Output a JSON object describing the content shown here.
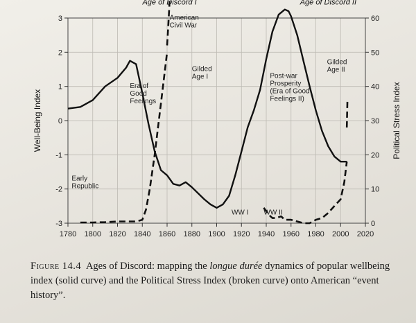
{
  "chart_data": {
    "type": "line",
    "xlim": [
      1780,
      2020
    ],
    "x_ticks": [
      "1780",
      "1800",
      "1820",
      "1840",
      "1860",
      "1880",
      "1900",
      "1920",
      "1940",
      "1960",
      "1980",
      "2000",
      "2020"
    ],
    "left_axis": {
      "label": "Well-Being Index",
      "ylim": [
        -3,
        3
      ],
      "ticks": [
        "-3",
        "-2",
        "-1",
        "0",
        "1",
        "2",
        "3"
      ]
    },
    "right_axis": {
      "label": "Political Stress Index",
      "ylim": [
        0,
        60
      ],
      "ticks": [
        "0",
        "10",
        "20",
        "30",
        "40",
        "50",
        "60"
      ]
    },
    "grid": true,
    "series": [
      {
        "style": "solid",
        "axis": "left",
        "x": [
          1780,
          1790,
          1800,
          1810,
          1820,
          1827,
          1830,
          1835,
          1840,
          1845,
          1850,
          1855,
          1860,
          1865,
          1870,
          1875,
          1880,
          1890,
          1895,
          1900,
          1905,
          1910,
          1915,
          1920,
          1925,
          1930,
          1935,
          1940,
          1945,
          1950,
          1955,
          1958,
          1960,
          1965,
          1970,
          1975,
          1980,
          1985,
          1990,
          1995,
          2000,
          2005
        ],
        "y": [
          0.35,
          0.4,
          0.6,
          1.0,
          1.25,
          1.55,
          1.75,
          1.65,
          0.8,
          -0.1,
          -0.9,
          -1.45,
          -1.6,
          -1.85,
          -1.9,
          -1.8,
          -1.95,
          -2.3,
          -2.45,
          -2.55,
          -2.45,
          -2.2,
          -1.6,
          -0.9,
          -0.2,
          0.3,
          0.9,
          1.8,
          2.6,
          3.1,
          3.25,
          3.2,
          3.05,
          2.5,
          1.75,
          1.0,
          0.3,
          -0.3,
          -0.75,
          -1.05,
          -1.2,
          -1.2
        ]
      },
      {
        "style": "dashed",
        "axis": "right",
        "x": [
          1790,
          1800,
          1810,
          1820,
          1825,
          1830,
          1835,
          1840,
          1843,
          1846,
          1850,
          1855,
          1860
        ],
        "y": [
          0.2,
          0.2,
          0.3,
          0.5,
          0.5,
          0.5,
          0.5,
          1,
          4,
          10,
          20,
          35,
          50
        ]
      },
      {
        "style": "dashed",
        "axis": "right",
        "x": [
          1860,
          1861,
          1862
        ],
        "y": [
          52,
          58,
          65
        ]
      },
      {
        "style": "dashed",
        "axis": "right",
        "x": [
          1938,
          1942,
          1945,
          1948,
          1952,
          1955,
          1960,
          1965,
          1970,
          1975,
          1980,
          1985,
          1990,
          1995,
          2000,
          2003,
          2005
        ],
        "y": [
          4.5,
          2.5,
          1.5,
          1.5,
          2,
          1,
          1,
          0.5,
          0,
          0,
          1,
          1.5,
          3,
          5,
          7,
          12,
          18
        ]
      },
      {
        "style": "dashed",
        "axis": "right",
        "x": [
          2005,
          2005.5
        ],
        "y": [
          28,
          36
        ]
      }
    ],
    "annotations": [
      {
        "text": "Age of Discord I",
        "x": 1862,
        "y_right": 64,
        "kind": "era"
      },
      {
        "text": "Age of Discord II",
        "x": 1990,
        "y_right": 64,
        "kind": "era"
      },
      {
        "lines": [
          "American",
          "Civil War"
        ],
        "x": 1862,
        "y": 2.95
      },
      {
        "lines": [
          "Gilded",
          "Age I"
        ],
        "x": 1880,
        "y": 1.45
      },
      {
        "lines": [
          "Gilded",
          "Age II"
        ],
        "x": 1989,
        "y": 1.65
      },
      {
        "lines": [
          "Era of",
          "Good",
          "Feelings"
        ],
        "x": 1830,
        "y": 0.95
      },
      {
        "lines": [
          "Post-war",
          "Prosperity",
          "(Era of Good",
          "Feelings II)"
        ],
        "x": 1943,
        "y": 1.25
      },
      {
        "lines": [
          "Early",
          "Republic"
        ],
        "x": 1783,
        "y": -1.75
      },
      {
        "lines": [
          "WW I"
        ],
        "x": 1912,
        "y": -2.75
      },
      {
        "lines": [
          "WW II"
        ],
        "x": 1938,
        "y": -2.75
      }
    ]
  },
  "caption": {
    "label": "Figure 14.4",
    "before_em": "Ages of Discord: mapping the ",
    "em": "longue durée",
    "after_em": " dynamics of popular wellbeing index (solid curve) and the Political Stress Index (broken curve) onto American “event history”."
  }
}
